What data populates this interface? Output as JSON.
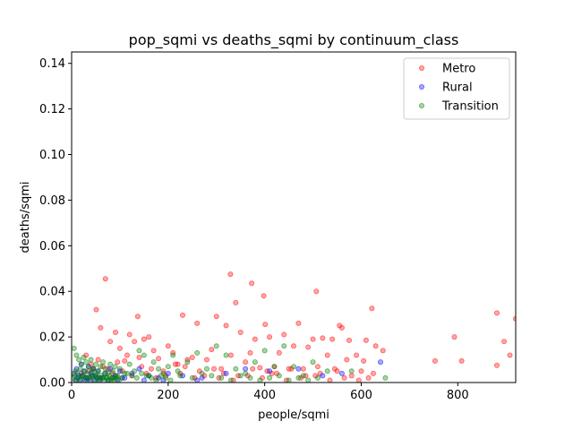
{
  "chart_data": {
    "type": "scatter",
    "title": "pop_sqmi vs deaths_sqmi by continuum_class",
    "xlabel": "people/sqmi",
    "ylabel": "deaths/sqmi",
    "xlim": [
      0,
      920
    ],
    "ylim": [
      0,
      0.145
    ],
    "xticks": [
      0,
      200,
      400,
      600,
      800
    ],
    "xtick_labels": [
      "0",
      "200",
      "400",
      "600",
      "800"
    ],
    "yticks": [
      0.0,
      0.02,
      0.04,
      0.06,
      0.08,
      0.1,
      0.12,
      0.14
    ],
    "ytick_labels": [
      "0.00",
      "0.02",
      "0.04",
      "0.06",
      "0.08",
      "0.10",
      "0.12",
      "0.14"
    ],
    "grid": false,
    "legend_position": "top-right",
    "series": [
      {
        "name": "Metro",
        "color": "#ff0000",
        "x": [
          70,
          51,
          329,
          373,
          555,
          507,
          340,
          398,
          622,
          401,
          881,
          920,
          908,
          793,
          753,
          881,
          896,
          808,
          137,
          91,
          120,
          150,
          160,
          200,
          230,
          260,
          300,
          320,
          350,
          380,
          410,
          440,
          470,
          500,
          520,
          540,
          560,
          590,
          610,
          630,
          645,
          30,
          60,
          100,
          130,
          170,
          210,
          250,
          290,
          330,
          370,
          430,
          460,
          490,
          530,
          575,
          605,
          80,
          110,
          140,
          180,
          220,
          240,
          280,
          310,
          360,
          390,
          420,
          450,
          480,
          510,
          545,
          570,
          600,
          625,
          40,
          55,
          75,
          95,
          115,
          145,
          165,
          190,
          215,
          235,
          265,
          295,
          315,
          345,
          375,
          405,
          425,
          455,
          485,
          515,
          550,
          580,
          615,
          20,
          35,
          45,
          65,
          85,
          105,
          125,
          155,
          175,
          195,
          225,
          255,
          275,
          305,
          335,
          365,
          395,
          415,
          445,
          475,
          505,
          535,
          565,
          595
        ],
        "y": [
          0.0455,
          0.032,
          0.0475,
          0.0435,
          0.025,
          0.04,
          0.035,
          0.038,
          0.0325,
          0.0255,
          0.0305,
          0.028,
          0.012,
          0.02,
          0.0095,
          0.0075,
          0.018,
          0.0095,
          0.029,
          0.022,
          0.021,
          0.019,
          0.02,
          0.016,
          0.0295,
          0.026,
          0.029,
          0.025,
          0.022,
          0.019,
          0.02,
          0.021,
          0.026,
          0.019,
          0.0195,
          0.019,
          0.024,
          0.012,
          0.0185,
          0.016,
          0.014,
          0.012,
          0.024,
          0.015,
          0.018,
          0.014,
          0.013,
          0.011,
          0.0145,
          0.012,
          0.013,
          0.013,
          0.016,
          0.0155,
          0.012,
          0.0185,
          0.0095,
          0.018,
          0.0095,
          0.011,
          0.0105,
          0.008,
          0.01,
          0.01,
          0.006,
          0.009,
          0.0065,
          0.007,
          0.006,
          0.006,
          0.007,
          0.006,
          0.01,
          0.005,
          0.004,
          0.008,
          0.01,
          0.006,
          0.009,
          0.012,
          0.007,
          0.006,
          0.005,
          0.008,
          0.007,
          0.005,
          0.006,
          0.004,
          0.003,
          0.006,
          0.005,
          0.004,
          0.006,
          0.003,
          0.004,
          0.005,
          0.003,
          0.002,
          0.004,
          0.005,
          0.006,
          0.007,
          0.004,
          0.005,
          0.003,
          0.004,
          0.002,
          0.003,
          0.004,
          0.002,
          0.003,
          0.002,
          0.001,
          0.003,
          0.002,
          0.004,
          0.001,
          0.002,
          0.003,
          0.001,
          0.002,
          0.001
        ]
      },
      {
        "name": "Rural",
        "color": "#0000ff",
        "x": [
          5,
          10,
          15,
          20,
          25,
          30,
          35,
          40,
          45,
          50,
          55,
          60,
          70,
          80,
          90,
          100,
          110,
          125,
          140,
          160,
          180,
          200,
          230,
          270,
          320,
          360,
          410,
          470,
          520,
          560,
          640,
          8,
          12,
          18,
          22,
          28,
          33,
          38,
          42,
          48,
          52,
          58,
          65,
          75,
          85,
          95,
          105,
          150,
          190,
          260
        ],
        "y": [
          0.004,
          0.006,
          0.003,
          0.008,
          0.005,
          0.002,
          0.007,
          0.004,
          0.006,
          0.003,
          0.005,
          0.002,
          0.004,
          0.006,
          0.003,
          0.005,
          0.002,
          0.004,
          0.006,
          0.003,
          0.002,
          0.004,
          0.003,
          0.002,
          0.004,
          0.006,
          0.005,
          0.006,
          0.003,
          0.004,
          0.009,
          0.001,
          0.002,
          0.001,
          0.003,
          0.001,
          0.002,
          0.001,
          0.003,
          0.001,
          0.002,
          0.001,
          0.002,
          0.001,
          0.002,
          0.001,
          0.002,
          0.001,
          0.001,
          0.001
        ]
      },
      {
        "name": "Transition",
        "color": "#008000",
        "x": [
          5,
          10,
          15,
          20,
          25,
          30,
          35,
          40,
          45,
          50,
          55,
          60,
          65,
          70,
          75,
          80,
          85,
          90,
          95,
          100,
          110,
          120,
          130,
          140,
          150,
          160,
          170,
          180,
          190,
          200,
          210,
          220,
          240,
          260,
          280,
          300,
          320,
          340,
          360,
          380,
          400,
          420,
          440,
          460,
          480,
          500,
          530,
          580,
          650,
          8,
          12,
          18,
          22,
          28,
          33,
          38,
          42,
          48,
          52,
          58,
          62,
          68,
          72,
          78,
          82,
          88,
          92,
          98,
          105,
          115,
          125,
          135,
          145,
          155,
          165,
          175,
          185,
          195,
          205,
          225,
          250,
          270,
          290,
          310,
          330,
          350,
          370,
          390,
          410,
          430,
          450,
          470,
          490,
          510,
          3,
          6,
          9,
          14,
          17,
          24,
          27,
          32,
          37,
          44,
          47,
          54,
          57,
          64,
          67,
          74,
          77,
          84,
          87,
          94
        ],
        "y": [
          0.015,
          0.012,
          0.01,
          0.008,
          0.011,
          0.009,
          0.007,
          0.01,
          0.006,
          0.008,
          0.005,
          0.007,
          0.009,
          0.006,
          0.004,
          0.008,
          0.005,
          0.007,
          0.003,
          0.006,
          0.004,
          0.008,
          0.005,
          0.014,
          0.012,
          0.003,
          0.009,
          0.006,
          0.004,
          0.007,
          0.012,
          0.005,
          0.009,
          0.013,
          0.006,
          0.016,
          0.012,
          0.006,
          0.004,
          0.009,
          0.014,
          0.007,
          0.016,
          0.007,
          0.003,
          0.009,
          0.005,
          0.005,
          0.002,
          0.005,
          0.004,
          0.006,
          0.003,
          0.005,
          0.004,
          0.002,
          0.005,
          0.003,
          0.004,
          0.002,
          0.003,
          0.004,
          0.002,
          0.003,
          0.001,
          0.002,
          0.003,
          0.001,
          0.002,
          0.004,
          0.003,
          0.002,
          0.004,
          0.003,
          0.002,
          0.001,
          0.003,
          0.002,
          0.001,
          0.003,
          0.002,
          0.004,
          0.003,
          0.002,
          0.001,
          0.003,
          0.002,
          0.001,
          0.002,
          0.003,
          0.001,
          0.002,
          0.001,
          0.002,
          0.002,
          0.003,
          0.001,
          0.002,
          0.001,
          0.003,
          0.002,
          0.001,
          0.002,
          0.003,
          0.001,
          0.002,
          0.001,
          0.002,
          0.001,
          0.002,
          0.001,
          0.002,
          0.001,
          0.002
        ]
      }
    ]
  }
}
